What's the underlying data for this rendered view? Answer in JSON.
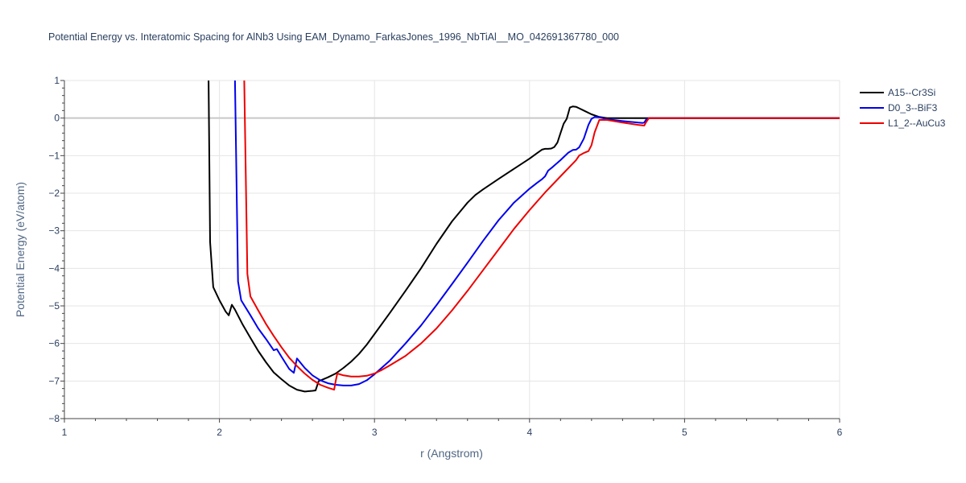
{
  "chart_data": {
    "type": "line",
    "title": "Potential Energy vs. Interatomic Spacing for AlNb3 Using EAM_Dynamo_FarkasJones_1996_NbTiAl__MO_042691367780_000",
    "xlabel": "r (Angstrom)",
    "ylabel": "Potential Energy (eV/atom)",
    "xlim": [
      1,
      6
    ],
    "ylim": [
      -8,
      1
    ],
    "xticks": [
      1,
      2,
      3,
      4,
      5,
      6
    ],
    "yticks": [
      1,
      0,
      -1,
      -2,
      -3,
      -4,
      -5,
      -6,
      -7,
      -8
    ],
    "grid": true,
    "legend_position": "top-right",
    "series": [
      {
        "name": "A15--Cr3Si",
        "color": "#000000",
        "x": [
          1.93,
          1.94,
          1.96,
          2.0,
          2.04,
          2.06,
          2.08,
          2.1,
          2.15,
          2.2,
          2.25,
          2.3,
          2.35,
          2.4,
          2.45,
          2.5,
          2.55,
          2.6,
          2.62,
          2.64,
          2.66,
          2.7,
          2.75,
          2.8,
          2.85,
          2.9,
          2.95,
          3.0,
          3.1,
          3.2,
          3.3,
          3.4,
          3.5,
          3.6,
          3.65,
          3.7,
          3.8,
          3.9,
          4.0,
          4.05,
          4.08,
          4.1,
          4.12,
          4.14,
          4.16,
          4.18,
          4.2,
          4.22,
          4.24,
          4.26,
          4.28,
          4.3,
          4.32,
          4.35,
          4.4,
          4.45,
          4.5,
          4.6,
          4.8,
          5.0,
          5.5,
          6.0
        ],
        "y": [
          1.0,
          -3.3,
          -4.5,
          -4.85,
          -5.15,
          -5.25,
          -4.97,
          -5.1,
          -5.5,
          -5.85,
          -6.2,
          -6.5,
          -6.77,
          -6.95,
          -7.12,
          -7.23,
          -7.28,
          -7.26,
          -7.25,
          -7.0,
          -6.97,
          -6.9,
          -6.8,
          -6.65,
          -6.48,
          -6.28,
          -6.03,
          -5.75,
          -5.18,
          -4.6,
          -4.0,
          -3.35,
          -2.75,
          -2.25,
          -2.05,
          -1.9,
          -1.62,
          -1.35,
          -1.08,
          -0.93,
          -0.84,
          -0.82,
          -0.82,
          -0.81,
          -0.77,
          -0.65,
          -0.4,
          -0.15,
          -0.02,
          0.28,
          0.31,
          0.3,
          0.26,
          0.2,
          0.1,
          0.03,
          0.0,
          0.0,
          0.0,
          0.0,
          0.0,
          0.0
        ]
      },
      {
        "name": "D0_3--BiF3",
        "color": "#0000ee",
        "x": [
          2.1,
          2.12,
          2.14,
          2.2,
          2.25,
          2.3,
          2.35,
          2.37,
          2.4,
          2.45,
          2.48,
          2.5,
          2.55,
          2.6,
          2.65,
          2.7,
          2.75,
          2.8,
          2.85,
          2.9,
          2.95,
          3.0,
          3.1,
          3.2,
          3.3,
          3.4,
          3.5,
          3.6,
          3.7,
          3.8,
          3.9,
          4.0,
          4.05,
          4.08,
          4.1,
          4.12,
          4.15,
          4.2,
          4.25,
          4.28,
          4.3,
          4.32,
          4.35,
          4.38,
          4.4,
          4.42,
          4.45,
          4.5,
          4.6,
          4.7,
          4.73,
          4.74,
          4.75,
          4.77,
          5.0,
          5.5,
          6.0
        ],
        "y": [
          1.0,
          -4.35,
          -4.85,
          -5.25,
          -5.6,
          -5.88,
          -6.18,
          -6.15,
          -6.35,
          -6.68,
          -6.78,
          -6.4,
          -6.65,
          -6.85,
          -6.98,
          -7.06,
          -7.1,
          -7.12,
          -7.12,
          -7.08,
          -6.98,
          -6.82,
          -6.45,
          -6.0,
          -5.52,
          -4.98,
          -4.42,
          -3.85,
          -3.27,
          -2.72,
          -2.25,
          -1.88,
          -1.72,
          -1.63,
          -1.55,
          -1.4,
          -1.3,
          -1.12,
          -0.92,
          -0.85,
          -0.84,
          -0.78,
          -0.55,
          -0.18,
          -0.02,
          0.03,
          0.02,
          -0.03,
          -0.08,
          -0.12,
          -0.13,
          -0.12,
          -0.05,
          0.0,
          0.0,
          0.0,
          0.0
        ]
      },
      {
        "name": "L1_2--AuCu3",
        "color": "#ee0000",
        "x": [
          2.16,
          2.17,
          2.18,
          2.2,
          2.25,
          2.3,
          2.35,
          2.4,
          2.45,
          2.5,
          2.55,
          2.6,
          2.65,
          2.7,
          2.74,
          2.75,
          2.76,
          2.8,
          2.85,
          2.9,
          2.95,
          3.0,
          3.05,
          3.1,
          3.2,
          3.3,
          3.4,
          3.5,
          3.6,
          3.7,
          3.8,
          3.9,
          4.0,
          4.1,
          4.2,
          4.3,
          4.32,
          4.35,
          4.38,
          4.4,
          4.42,
          4.45,
          4.5,
          4.6,
          4.7,
          4.74,
          4.75,
          4.77,
          5.0,
          5.5,
          6.0
        ],
        "y": [
          1.0,
          -1.5,
          -4.15,
          -4.75,
          -5.12,
          -5.48,
          -5.8,
          -6.1,
          -6.38,
          -6.6,
          -6.8,
          -6.97,
          -7.1,
          -7.18,
          -7.23,
          -7.0,
          -6.8,
          -6.85,
          -6.88,
          -6.88,
          -6.86,
          -6.8,
          -6.7,
          -6.58,
          -6.33,
          -6.0,
          -5.6,
          -5.12,
          -4.6,
          -4.05,
          -3.5,
          -2.95,
          -2.45,
          -1.98,
          -1.55,
          -1.12,
          -1.0,
          -0.93,
          -0.88,
          -0.72,
          -0.38,
          -0.05,
          -0.05,
          -0.12,
          -0.18,
          -0.2,
          -0.12,
          0.0,
          0.0,
          0.0,
          0.0
        ]
      }
    ]
  }
}
